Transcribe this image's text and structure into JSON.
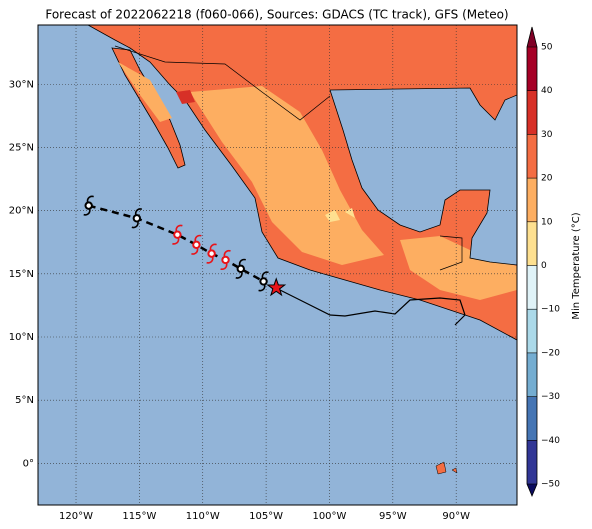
{
  "chart_data": {
    "type": "map",
    "title": "Forecast of 2022062218 (f060-066), Sources: GDACS (TC track), GFS (Meteo)",
    "xlim": [
      -123,
      -85.2
    ],
    "ylim": [
      -3.3,
      34.7
    ],
    "xticks": [
      {
        "value": -120,
        "label": "120°W"
      },
      {
        "value": -115,
        "label": "115°W"
      },
      {
        "value": -110,
        "label": "110°W"
      },
      {
        "value": -105,
        "label": "105°W"
      },
      {
        "value": -100,
        "label": "100°W"
      },
      {
        "value": -95,
        "label": "95°W"
      },
      {
        "value": -90,
        "label": "90°W"
      }
    ],
    "yticks": [
      {
        "value": 0,
        "label": "0°"
      },
      {
        "value": 5,
        "label": "5°N"
      },
      {
        "value": 10,
        "label": "10°N"
      },
      {
        "value": 15,
        "label": "15°N"
      },
      {
        "value": 20,
        "label": "20°N"
      },
      {
        "value": 25,
        "label": "25°N"
      },
      {
        "value": 30,
        "label": "30°N"
      }
    ],
    "grid": true,
    "ocean_color": "#92b4d8",
    "track": {
      "lon": [
        -119.0,
        -115.2,
        -112.0,
        -110.5,
        -109.3,
        -108.2,
        -107.0,
        -105.2
      ],
      "lat": [
        20.4,
        19.4,
        18.1,
        17.3,
        16.6,
        16.1,
        15.4,
        14.4
      ],
      "colors": [
        "#000000",
        "#000000",
        "#e8141a",
        "#e8141a",
        "#e8141a",
        "#e8141a",
        "#000000",
        "#000000"
      ]
    },
    "current_position": {
      "lon": -104.2,
      "lat": 13.9,
      "color": "#e8141a"
    },
    "colorbar": {
      "label": "Min Temperature (°C)",
      "lim": [
        -50,
        50
      ],
      "ticks": [
        {
          "value": -50,
          "label": "−50"
        },
        {
          "value": -40,
          "label": "−40"
        },
        {
          "value": -30,
          "label": "−30"
        },
        {
          "value": -20,
          "label": "−20"
        },
        {
          "value": -10,
          "label": "−10"
        },
        0,
        10,
        20,
        30,
        40,
        50
      ],
      "colors": [
        "#313695",
        "#4575b4",
        "#74add1",
        "#abd9e9",
        "#e0f3f8",
        "#fee090",
        "#fdae61",
        "#f46d43",
        "#d73027",
        "#a50026"
      ],
      "extend_colors": [
        "#0b0b5e",
        "#7f0026"
      ]
    }
  }
}
